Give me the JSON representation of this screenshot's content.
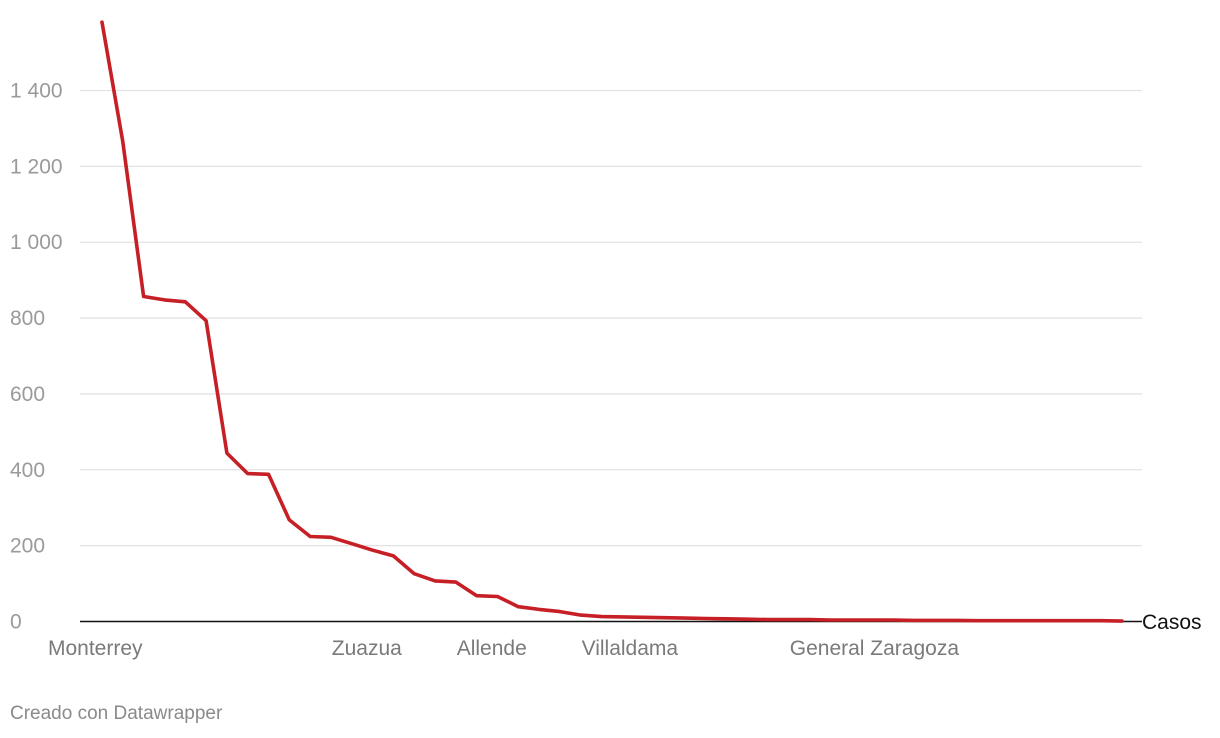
{
  "chart_data": {
    "type": "line",
    "series": [
      {
        "name": "Casos",
        "color": "#c62026",
        "values": [
          1580,
          1265,
          857,
          848,
          843,
          793,
          444,
          390,
          388,
          268,
          224,
          222,
          205,
          188,
          173,
          126,
          107,
          104,
          68,
          66,
          39,
          32,
          26,
          17,
          13,
          12,
          11,
          10,
          9,
          8,
          7,
          6,
          5,
          5,
          5,
          4,
          4,
          4,
          4,
          3,
          3,
          3,
          2,
          2,
          2,
          2,
          2,
          2,
          2,
          1
        ]
      }
    ],
    "x_tick_labels": [
      {
        "index": 0,
        "label": "Monterrey"
      },
      {
        "index": 12,
        "label": "Zuazua"
      },
      {
        "index": 18,
        "label": "Allende"
      },
      {
        "index": 24,
        "label": "Villaldama"
      },
      {
        "index": 34,
        "label": "General Zaragoza"
      }
    ],
    "y_ticks": [
      {
        "value": 0,
        "label": "0"
      },
      {
        "value": 200,
        "label": "200"
      },
      {
        "value": 400,
        "label": "400"
      },
      {
        "value": 600,
        "label": "600"
      },
      {
        "value": 800,
        "label": "800"
      },
      {
        "value": 1000,
        "label": "1 000"
      },
      {
        "value": 1200,
        "label": "1 200"
      },
      {
        "value": 1400,
        "label": "1 400"
      }
    ],
    "ylim": [
      0,
      1580
    ],
    "grid": true,
    "grid_color": "#e2e2e2",
    "baseline_color": "#111111"
  },
  "footer": {
    "credit": "Creado con Datawrapper"
  }
}
